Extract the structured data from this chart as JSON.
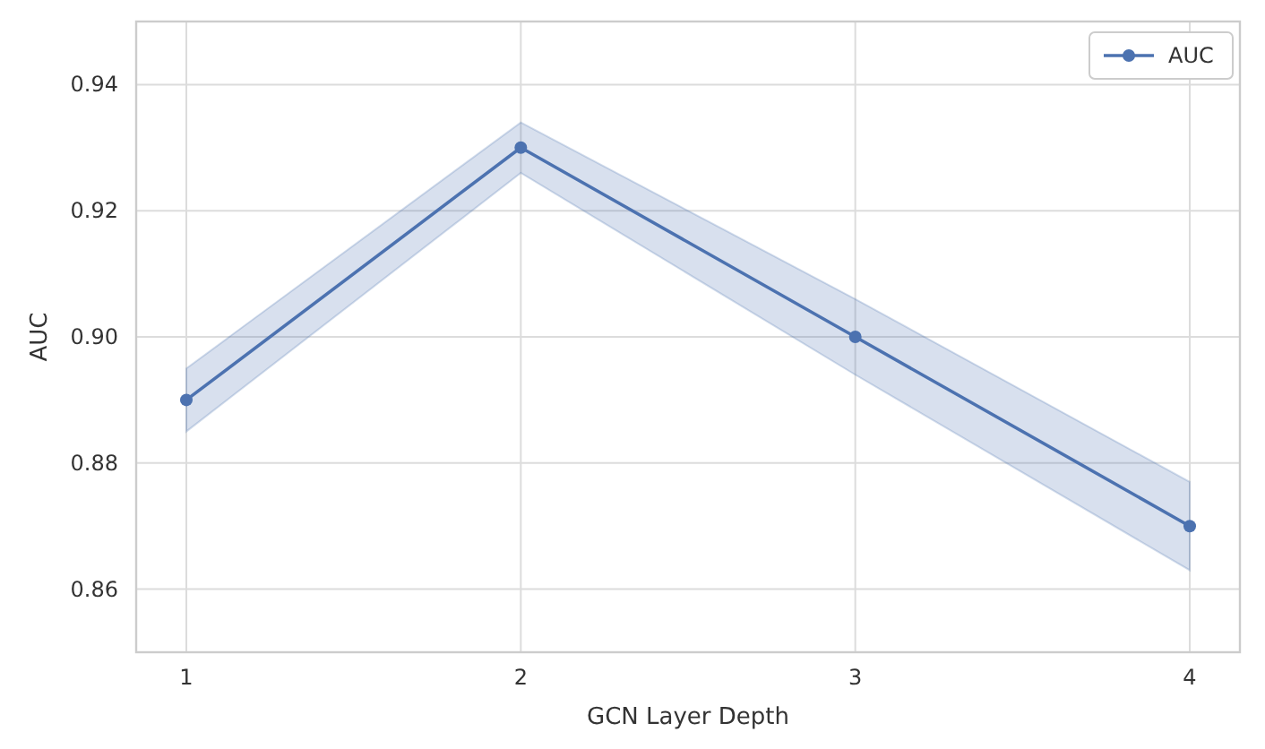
{
  "chart_data": {
    "type": "line",
    "xlabel": "GCN Layer Depth",
    "ylabel": "AUC",
    "x": [
      1,
      2,
      3,
      4
    ],
    "series": [
      {
        "name": "AUC",
        "color": "#4c72b0",
        "values": [
          0.89,
          0.93,
          0.9,
          0.87
        ],
        "lower": [
          0.885,
          0.926,
          0.894,
          0.863
        ],
        "upper": [
          0.895,
          0.934,
          0.906,
          0.877
        ]
      }
    ],
    "xlim": [
      0.85,
      4.15
    ],
    "xticks": [
      1,
      2,
      3,
      4
    ],
    "ylim": [
      0.85,
      0.95
    ],
    "yticks": [
      {
        "value": 0.86,
        "label": "0.86"
      },
      {
        "value": 0.88,
        "label": "0.88"
      },
      {
        "value": 0.9,
        "label": "0.90"
      },
      {
        "value": 0.92,
        "label": "0.92"
      },
      {
        "value": 0.94,
        "label": "0.94"
      }
    ],
    "grid": true,
    "legend": "top right",
    "marker": "circle",
    "line_style": "solid"
  }
}
